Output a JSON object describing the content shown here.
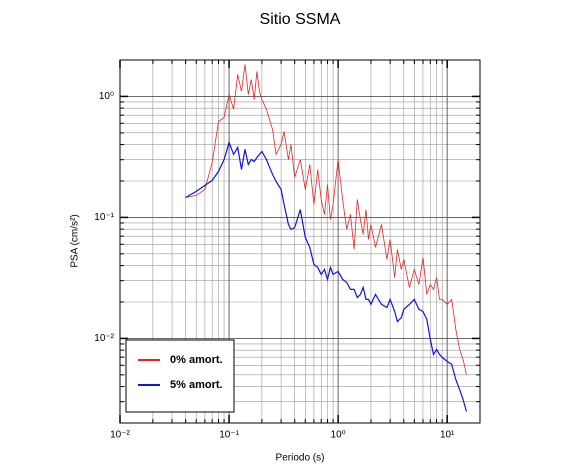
{
  "chart_data": {
    "type": "line",
    "title": "Sitio SSMA",
    "x_label": "Periodo (s)",
    "y_label": "PSA (cm/s²)",
    "xlog": true,
    "ylog": true,
    "grid": true,
    "legend": "lower left",
    "xlim": [
      0.01,
      20
    ],
    "ylim": [
      0.002,
      2
    ],
    "xticks": [
      {
        "value": 0.01,
        "label": "10⁻²"
      },
      {
        "value": 0.1,
        "label": "10⁻¹"
      },
      {
        "value": 1,
        "label": "10⁰"
      },
      {
        "value": 10,
        "label": "10¹"
      }
    ],
    "yticks": [
      {
        "value": 0.01,
        "label": "10⁻²"
      },
      {
        "value": 0.1,
        "label": "10⁻¹"
      },
      {
        "value": 1,
        "label": "10⁰"
      }
    ],
    "xminor_ticks": [
      0.02,
      0.03,
      0.04,
      0.05,
      0.06,
      0.07,
      0.08,
      0.09,
      0.2,
      0.3,
      0.4,
      0.5,
      0.6,
      0.7,
      0.8,
      0.9,
      2,
      3,
      4,
      5,
      6,
      7,
      8,
      9
    ],
    "yminor_ticks": [
      0.003,
      0.004,
      0.005,
      0.006,
      0.007,
      0.008,
      0.009,
      0.02,
      0.03,
      0.04,
      0.05,
      0.06,
      0.07,
      0.08,
      0.09,
      0.2,
      0.3,
      0.4,
      0.5,
      0.6,
      0.7,
      0.8,
      0.9
    ],
    "x": [
      0.04,
      0.05,
      0.06,
      0.07,
      0.08,
      0.09,
      0.1,
      0.11,
      0.12,
      0.13,
      0.14,
      0.15,
      0.16,
      0.17,
      0.18,
      0.19,
      0.2,
      0.22,
      0.25,
      0.27,
      0.3,
      0.32,
      0.35,
      0.37,
      0.4,
      0.45,
      0.5,
      0.55,
      0.6,
      0.65,
      0.7,
      0.75,
      0.8,
      0.85,
      0.9,
      1.0,
      1.1,
      1.2,
      1.3,
      1.4,
      1.5,
      1.6,
      1.7,
      1.8,
      1.9,
      2.0,
      2.2,
      2.5,
      2.8,
      3.0,
      3.3,
      3.5,
      3.8,
      4.0,
      4.5,
      5.0,
      5.5,
      6.0,
      6.5,
      7.0,
      7.5,
      8.0,
      8.5,
      9.0,
      10,
      11,
      12,
      13,
      14,
      15
    ],
    "series": [
      {
        "name": "0% amort.",
        "color": "#e02828",
        "values": [
          0.146,
          0.152,
          0.17,
          0.285,
          0.621,
          0.67,
          1.04,
          0.781,
          1.52,
          1.1,
          1.84,
          1.04,
          1.38,
          0.945,
          1.61,
          1.1,
          0.945,
          0.781,
          0.534,
          0.332,
          0.401,
          0.514,
          0.301,
          0.401,
          0.214,
          0.301,
          0.17,
          0.274,
          0.128,
          0.249,
          0.141,
          0.106,
          0.187,
          0.0962,
          0.128,
          0.301,
          0.141,
          0.0796,
          0.106,
          0.0544,
          0.141,
          0.0962,
          0.0724,
          0.116,
          0.0658,
          0.0875,
          0.0565,
          0.0875,
          0.045,
          0.0658,
          0.0319,
          0.0544,
          0.0372,
          0.045,
          0.0264,
          0.0372,
          0.0279,
          0.0467,
          0.0231,
          0.0279,
          0.0254,
          0.0319,
          0.021,
          0.021,
          0.0191,
          0.021,
          0.0119,
          0.00811,
          0.0067,
          0.00504
        ]
      },
      {
        "name": "5% amort.",
        "color": "#1414d2",
        "values": [
          0.146,
          0.164,
          0.184,
          0.202,
          0.24,
          0.301,
          0.417,
          0.332,
          0.379,
          0.249,
          0.365,
          0.274,
          0.301,
          0.29,
          0.313,
          0.332,
          0.351,
          0.301,
          0.227,
          0.198,
          0.17,
          0.128,
          0.0875,
          0.0796,
          0.0826,
          0.116,
          0.0684,
          0.0565,
          0.0409,
          0.0386,
          0.0338,
          0.0372,
          0.0308,
          0.0386,
          0.0338,
          0.0358,
          0.0308,
          0.029,
          0.0254,
          0.0254,
          0.0218,
          0.0231,
          0.0264,
          0.021,
          0.021,
          0.0191,
          0.0231,
          0.0191,
          0.018,
          0.021,
          0.0167,
          0.0138,
          0.0149,
          0.0174,
          0.0191,
          0.021,
          0.0174,
          0.0167,
          0.0144,
          0.00981,
          0.00738,
          0.00811,
          0.00738,
          0.00697,
          0.00646,
          0.0061,
          0.00458,
          0.00379,
          0.00313,
          0.00249
        ]
      }
    ]
  }
}
